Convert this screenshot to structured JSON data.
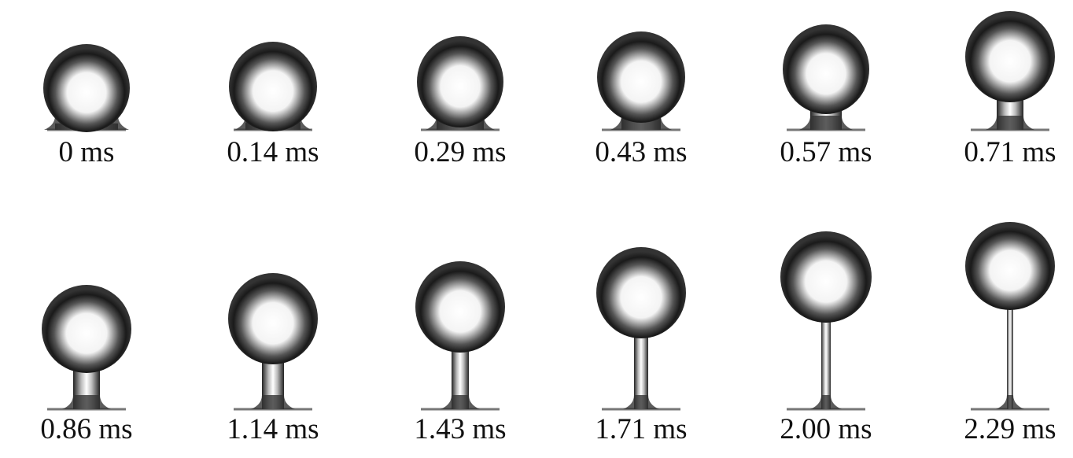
{
  "figure": {
    "panels": [
      {
        "time": "0 ms"
      },
      {
        "time": "0.14 ms"
      },
      {
        "time": "0.29 ms"
      },
      {
        "time": "0.43 ms"
      },
      {
        "time": "0.57 ms"
      },
      {
        "time": "0.71 ms"
      },
      {
        "time": "0.86 ms"
      },
      {
        "time": "1.14 ms"
      },
      {
        "time": "1.43 ms"
      },
      {
        "time": "1.71 ms"
      },
      {
        "time": "2.00 ms"
      },
      {
        "time": "2.29 ms"
      }
    ]
  }
}
